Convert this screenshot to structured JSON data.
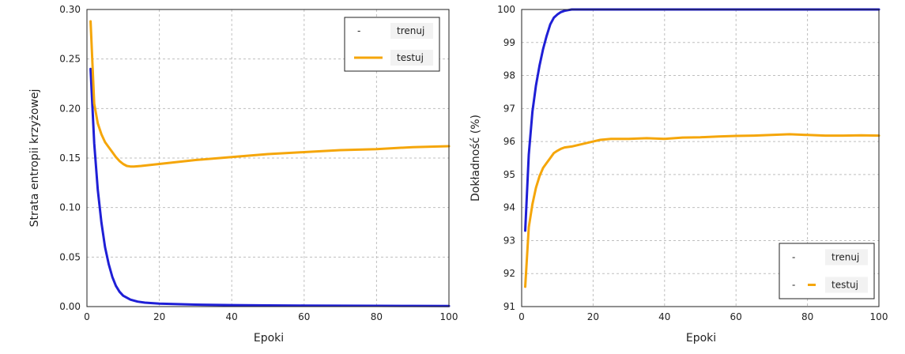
{
  "chart_data": [
    {
      "type": "line",
      "title": "",
      "xlabel": "Epoki",
      "ylabel": "Strata entropii krzyżowej",
      "xlim": [
        0,
        100
      ],
      "ylim": [
        0,
        0.3
      ],
      "xticks": [
        "0",
        "20",
        "40",
        "60",
        "80",
        "100"
      ],
      "yticks": [
        "0.00",
        "0.05",
        "0.10",
        "0.15",
        "0.20",
        "0.25",
        "0.30"
      ],
      "grid": true,
      "legend_position": "top-right",
      "series": [
        {
          "name": "trenuj",
          "color": "#1f1fd6",
          "legend_marker": "-",
          "x": [
            1,
            2,
            3,
            4,
            5,
            6,
            7,
            8,
            9,
            10,
            12,
            14,
            16,
            18,
            20,
            25,
            30,
            40,
            50,
            60,
            70,
            80,
            90,
            100
          ],
          "y": [
            0.24,
            0.165,
            0.118,
            0.085,
            0.06,
            0.043,
            0.03,
            0.021,
            0.015,
            0.011,
            0.007,
            0.005,
            0.004,
            0.0035,
            0.003,
            0.0025,
            0.002,
            0.0015,
            0.0012,
            0.001,
            0.0009,
            0.0008,
            0.0007,
            0.0006
          ]
        },
        {
          "name": "testuj",
          "color": "#f5a60a",
          "legend_marker": "line",
          "x": [
            1,
            2,
            3,
            4,
            5,
            6,
            7,
            8,
            9,
            10,
            11,
            12,
            13,
            15,
            20,
            30,
            40,
            50,
            60,
            70,
            80,
            90,
            100
          ],
          "y": [
            0.288,
            0.205,
            0.185,
            0.174,
            0.166,
            0.161,
            0.156,
            0.151,
            0.147,
            0.144,
            0.142,
            0.1415,
            0.1415,
            0.142,
            0.144,
            0.148,
            0.151,
            0.154,
            0.156,
            0.158,
            0.159,
            0.161,
            0.162
          ]
        }
      ]
    },
    {
      "type": "line",
      "title": "",
      "xlabel": "Epoki",
      "ylabel": "Dokładność (%)",
      "xlim": [
        0,
        100
      ],
      "ylim": [
        91,
        100
      ],
      "xticks": [
        "0",
        "20",
        "40",
        "60",
        "80",
        "100"
      ],
      "yticks": [
        "91",
        "92",
        "93",
        "94",
        "95",
        "96",
        "97",
        "98",
        "99",
        "100"
      ],
      "grid": true,
      "legend_position": "bottom-right",
      "series": [
        {
          "name": "trenuj",
          "color": "#1f1fd6",
          "legend_marker": "-",
          "x": [
            1,
            2,
            3,
            4,
            5,
            6,
            7,
            8,
            9,
            10,
            11,
            12,
            13,
            14,
            15,
            20,
            40,
            60,
            80,
            100
          ],
          "y": [
            93.3,
            95.6,
            96.9,
            97.7,
            98.3,
            98.8,
            99.2,
            99.55,
            99.75,
            99.85,
            99.92,
            99.96,
            99.98,
            100,
            100,
            100,
            100,
            100,
            100,
            100
          ]
        },
        {
          "name": "testuj",
          "color": "#f5a60a",
          "legend_marker": "-",
          "x": [
            1,
            2,
            3,
            4,
            5,
            6,
            7,
            8,
            9,
            10,
            11,
            12,
            14,
            16,
            18,
            20,
            22,
            25,
            30,
            35,
            40,
            45,
            50,
            55,
            60,
            65,
            70,
            75,
            80,
            85,
            90,
            95,
            100
          ],
          "y": [
            91.6,
            93.4,
            94.1,
            94.6,
            94.95,
            95.2,
            95.35,
            95.5,
            95.65,
            95.72,
            95.78,
            95.82,
            95.85,
            95.9,
            95.95,
            96.0,
            96.05,
            96.08,
            96.08,
            96.1,
            96.08,
            96.12,
            96.13,
            96.15,
            96.17,
            96.18,
            96.2,
            96.22,
            96.2,
            96.18,
            96.18,
            96.19,
            96.18
          ]
        }
      ]
    }
  ]
}
